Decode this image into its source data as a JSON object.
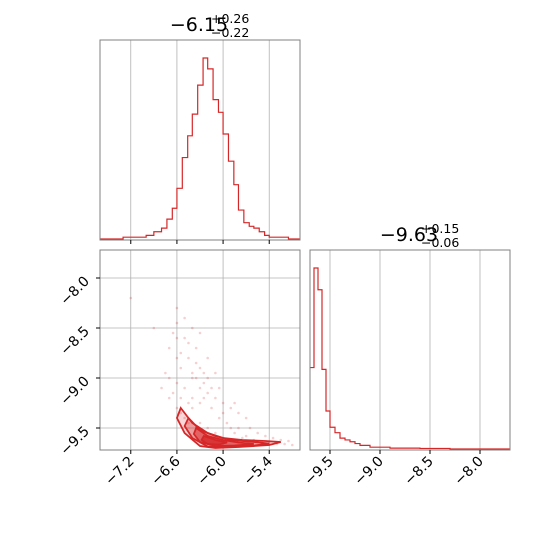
{
  "chart_data": {
    "type": "corner",
    "color": "#d62728",
    "panels": [
      {
        "id": "param1-histogram",
        "type": "histogram",
        "title": {
          "median": "−6.15",
          "plus": "+0.26",
          "minus": "−0.22"
        },
        "x_range": [
          -7.6,
          -5.0
        ],
        "x_ticks": [
          -7.2,
          -6.6,
          -6.0,
          -5.4
        ],
        "y_max": 1.0,
        "bins": [
          {
            "lo": -7.6,
            "hi": -7.45,
            "v": 0.0
          },
          {
            "lo": -7.45,
            "hi": -7.3,
            "v": 0.0
          },
          {
            "lo": -7.3,
            "hi": -7.15,
            "v": 0.01
          },
          {
            "lo": -7.15,
            "hi": -7.0,
            "v": 0.01
          },
          {
            "lo": -7.0,
            "hi": -6.9,
            "v": 0.02
          },
          {
            "lo": -6.9,
            "hi": -6.8,
            "v": 0.04
          },
          {
            "lo": -6.8,
            "hi": -6.73,
            "v": 0.06
          },
          {
            "lo": -6.73,
            "hi": -6.66,
            "v": 0.11
          },
          {
            "lo": -6.66,
            "hi": -6.6,
            "v": 0.17
          },
          {
            "lo": -6.6,
            "hi": -6.53,
            "v": 0.28
          },
          {
            "lo": -6.53,
            "hi": -6.46,
            "v": 0.45
          },
          {
            "lo": -6.46,
            "hi": -6.4,
            "v": 0.57
          },
          {
            "lo": -6.4,
            "hi": -6.33,
            "v": 0.69
          },
          {
            "lo": -6.33,
            "hi": -6.26,
            "v": 0.85
          },
          {
            "lo": -6.26,
            "hi": -6.2,
            "v": 1.0
          },
          {
            "lo": -6.2,
            "hi": -6.13,
            "v": 0.94
          },
          {
            "lo": -6.13,
            "hi": -6.06,
            "v": 0.77
          },
          {
            "lo": -6.06,
            "hi": -6.0,
            "v": 0.7
          },
          {
            "lo": -6.0,
            "hi": -5.93,
            "v": 0.58
          },
          {
            "lo": -5.93,
            "hi": -5.86,
            "v": 0.43
          },
          {
            "lo": -5.86,
            "hi": -5.8,
            "v": 0.3
          },
          {
            "lo": -5.8,
            "hi": -5.73,
            "v": 0.16
          },
          {
            "lo": -5.73,
            "hi": -5.66,
            "v": 0.09
          },
          {
            "lo": -5.66,
            "hi": -5.6,
            "v": 0.07
          },
          {
            "lo": -5.6,
            "hi": -5.53,
            "v": 0.06
          },
          {
            "lo": -5.53,
            "hi": -5.46,
            "v": 0.04
          },
          {
            "lo": -5.46,
            "hi": -5.4,
            "v": 0.02
          },
          {
            "lo": -5.4,
            "hi": -5.3,
            "v": 0.01
          },
          {
            "lo": -5.3,
            "hi": -5.15,
            "v": 0.01
          },
          {
            "lo": -5.15,
            "hi": -5.0,
            "v": 0.0
          }
        ]
      },
      {
        "id": "param2-histogram",
        "type": "histogram",
        "title": {
          "median": "−9.63",
          "plus": "+0.15",
          "minus": "−0.06"
        },
        "x_range": [
          -9.7,
          -7.7
        ],
        "x_ticks": [
          -9.5,
          -9.0,
          -8.5,
          -8.0
        ],
        "y_max": 1.0,
        "bins": [
          {
            "lo": -9.7,
            "hi": -9.66,
            "v": 0.45
          },
          {
            "lo": -9.66,
            "hi": -9.62,
            "v": 1.0
          },
          {
            "lo": -9.62,
            "hi": -9.58,
            "v": 0.88
          },
          {
            "lo": -9.58,
            "hi": -9.54,
            "v": 0.44
          },
          {
            "lo": -9.54,
            "hi": -9.5,
            "v": 0.21
          },
          {
            "lo": -9.5,
            "hi": -9.45,
            "v": 0.12
          },
          {
            "lo": -9.45,
            "hi": -9.4,
            "v": 0.09
          },
          {
            "lo": -9.4,
            "hi": -9.35,
            "v": 0.06
          },
          {
            "lo": -9.35,
            "hi": -9.3,
            "v": 0.05
          },
          {
            "lo": -9.3,
            "hi": -9.25,
            "v": 0.04
          },
          {
            "lo": -9.25,
            "hi": -9.2,
            "v": 0.03
          },
          {
            "lo": -9.2,
            "hi": -9.1,
            "v": 0.02
          },
          {
            "lo": -9.1,
            "hi": -8.9,
            "v": 0.01
          },
          {
            "lo": -8.9,
            "hi": -8.6,
            "v": 0.005
          },
          {
            "lo": -8.6,
            "hi": -8.3,
            "v": 0.003
          },
          {
            "lo": -8.3,
            "hi": -7.7,
            "v": 0.0
          }
        ]
      },
      {
        "id": "joint-scatter",
        "type": "scatter-contour",
        "x_range": [
          -7.6,
          -5.0
        ],
        "y_range": [
          -9.72,
          -7.72
        ],
        "x_ticks": [
          -7.2,
          -6.6,
          -6.0,
          -5.4
        ],
        "y_ticks": [
          -8.0,
          -8.5,
          -9.0,
          -9.5
        ],
        "points": [
          [
            -7.2,
            -8.2
          ],
          [
            -6.9,
            -8.5
          ],
          [
            -6.7,
            -8.7
          ],
          [
            -6.6,
            -8.3
          ],
          [
            -6.6,
            -8.6
          ],
          [
            -6.55,
            -8.9
          ],
          [
            -6.5,
            -8.4
          ],
          [
            -6.45,
            -8.8
          ],
          [
            -6.4,
            -9.0
          ],
          [
            -6.35,
            -8.7
          ],
          [
            -6.3,
            -9.1
          ],
          [
            -6.3,
            -8.9
          ],
          [
            -6.25,
            -9.2
          ],
          [
            -6.2,
            -9.0
          ],
          [
            -6.15,
            -9.3
          ],
          [
            -6.1,
            -9.2
          ],
          [
            -6.05,
            -9.4
          ],
          [
            -6.0,
            -9.35
          ],
          [
            -5.95,
            -9.45
          ],
          [
            -5.9,
            -9.5
          ],
          [
            -5.85,
            -9.55
          ],
          [
            -5.8,
            -9.5
          ],
          [
            -5.75,
            -9.6
          ],
          [
            -5.7,
            -9.58
          ],
          [
            -5.6,
            -9.62
          ],
          [
            -5.5,
            -9.64
          ],
          [
            -5.4,
            -9.65
          ],
          [
            -5.3,
            -9.66
          ],
          [
            -5.2,
            -9.66
          ],
          [
            -5.1,
            -9.67
          ],
          [
            -6.6,
            -9.3
          ],
          [
            -6.55,
            -9.35
          ],
          [
            -6.5,
            -9.4
          ],
          [
            -6.45,
            -9.45
          ],
          [
            -6.4,
            -9.3
          ],
          [
            -6.35,
            -9.5
          ],
          [
            -6.3,
            -9.45
          ],
          [
            -6.25,
            -9.55
          ],
          [
            -6.2,
            -9.5
          ],
          [
            -6.15,
            -9.6
          ],
          [
            -6.1,
            -9.55
          ],
          [
            -6.05,
            -9.62
          ],
          [
            -6.0,
            -9.6
          ],
          [
            -5.95,
            -9.64
          ],
          [
            -6.7,
            -9.0
          ],
          [
            -6.65,
            -9.15
          ],
          [
            -6.5,
            -9.1
          ],
          [
            -6.4,
            -9.2
          ],
          [
            -6.6,
            -9.05
          ],
          [
            -6.35,
            -9.0
          ],
          [
            -6.25,
            -8.95
          ],
          [
            -6.2,
            -9.15
          ],
          [
            -6.3,
            -9.25
          ],
          [
            -6.45,
            -9.25
          ],
          [
            -6.55,
            -9.2
          ],
          [
            -6.7,
            -9.2
          ],
          [
            -6.8,
            -9.1
          ],
          [
            -6.75,
            -8.95
          ],
          [
            -6.5,
            -8.6
          ],
          [
            -6.4,
            -8.5
          ],
          [
            -6.6,
            -8.45
          ],
          [
            -6.3,
            -8.55
          ],
          [
            -6.2,
            -8.8
          ],
          [
            -6.1,
            -8.95
          ],
          [
            -6.05,
            -9.1
          ],
          [
            -5.9,
            -9.3
          ],
          [
            -5.85,
            -9.25
          ],
          [
            -5.7,
            -9.4
          ],
          [
            -5.65,
            -9.5
          ],
          [
            -5.55,
            -9.55
          ],
          [
            -5.45,
            -9.58
          ],
          [
            -5.35,
            -9.6
          ],
          [
            -5.25,
            -9.62
          ],
          [
            -5.15,
            -9.63
          ],
          [
            -6.6,
            -8.8
          ],
          [
            -6.45,
            -8.65
          ],
          [
            -6.35,
            -8.85
          ],
          [
            -6.25,
            -9.05
          ],
          [
            -6.15,
            -9.1
          ],
          [
            -6.0,
            -9.25
          ],
          [
            -5.8,
            -9.35
          ],
          [
            -6.65,
            -8.55
          ],
          [
            -6.55,
            -8.75
          ],
          [
            -6.4,
            -8.95
          ]
        ],
        "contours": [
          [
            [
              -6.55,
              -9.3
            ],
            [
              -6.4,
              -9.45
            ],
            [
              -6.2,
              -9.55
            ],
            [
              -6.0,
              -9.6
            ],
            [
              -5.75,
              -9.62
            ],
            [
              -5.45,
              -9.63
            ],
            [
              -5.25,
              -9.64
            ],
            [
              -5.4,
              -9.67
            ],
            [
              -5.8,
              -9.69
            ],
            [
              -6.1,
              -9.7
            ],
            [
              -6.3,
              -9.68
            ],
            [
              -6.5,
              -9.55
            ],
            [
              -6.6,
              -9.4
            ],
            [
              -6.55,
              -9.3
            ]
          ],
          [
            [
              -6.45,
              -9.4
            ],
            [
              -6.3,
              -9.52
            ],
            [
              -6.1,
              -9.58
            ],
            [
              -5.9,
              -9.62
            ],
            [
              -5.6,
              -9.64
            ],
            [
              -5.4,
              -9.655
            ],
            [
              -5.6,
              -9.675
            ],
            [
              -5.95,
              -9.69
            ],
            [
              -6.2,
              -9.685
            ],
            [
              -6.4,
              -9.6
            ],
            [
              -6.5,
              -9.48
            ],
            [
              -6.45,
              -9.4
            ]
          ],
          [
            [
              -6.35,
              -9.5
            ],
            [
              -6.2,
              -9.58
            ],
            [
              -6.0,
              -9.62
            ],
            [
              -5.8,
              -9.645
            ],
            [
              -5.6,
              -9.66
            ],
            [
              -5.85,
              -9.675
            ],
            [
              -6.1,
              -9.68
            ],
            [
              -6.3,
              -9.64
            ],
            [
              -6.38,
              -9.56
            ],
            [
              -6.35,
              -9.5
            ]
          ],
          [
            [
              -6.25,
              -9.58
            ],
            [
              -6.1,
              -9.62
            ],
            [
              -5.95,
              -9.645
            ],
            [
              -6.05,
              -9.665
            ],
            [
              -6.2,
              -9.66
            ],
            [
              -6.28,
              -9.62
            ],
            [
              -6.25,
              -9.58
            ]
          ]
        ]
      }
    ]
  }
}
